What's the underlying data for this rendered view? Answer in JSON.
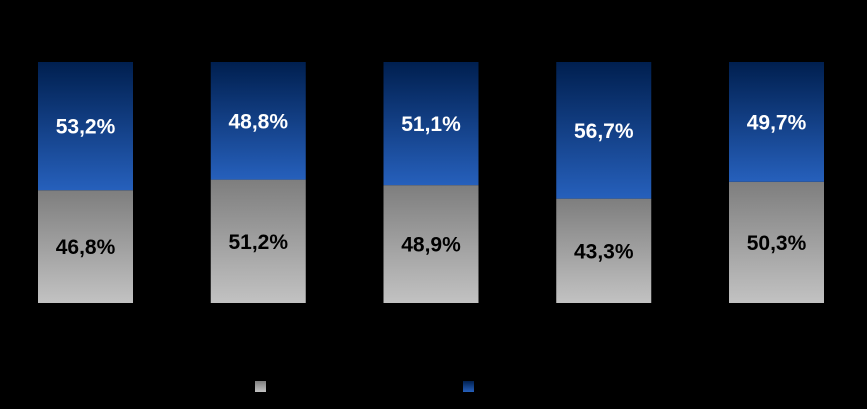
{
  "chart_data": {
    "type": "stacked-bar",
    "categories": [
      null,
      null,
      null,
      null,
      null
    ],
    "series": [
      {
        "color": "#a8a8a8",
        "label_color": "#000000",
        "values": [
          46.8,
          51.2,
          48.9,
          43.3,
          50.3
        ],
        "value_labels": [
          "46,8%",
          "51,2%",
          "48,9%",
          "43,3%",
          "50,3%"
        ]
      },
      {
        "color": "#0044b0",
        "label_color": "#ffffff",
        "values": [
          53.2,
          48.8,
          51.1,
          56.7,
          49.7
        ],
        "value_labels": [
          "53,2%",
          "48,8%",
          "51,1%",
          "56,7%",
          "49,7%"
        ]
      }
    ],
    "ylim": [
      0,
      100
    ],
    "legend": "bottom"
  }
}
